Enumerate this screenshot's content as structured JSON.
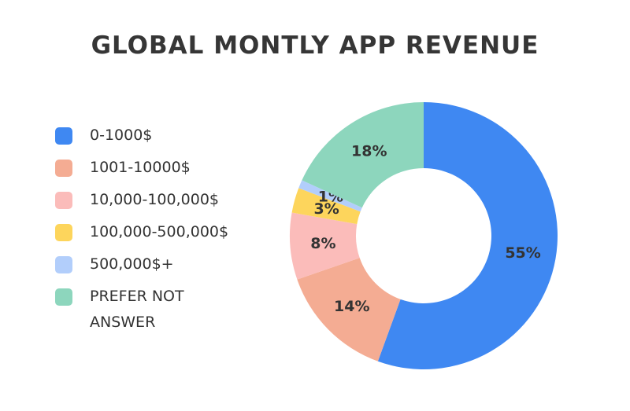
{
  "chart_data": {
    "type": "pie",
    "title": "GLOBAL MONTLY APP REVENUE",
    "categories": [
      "0-1000$",
      "1001-10000$",
      "10,000-100,000$",
      "100,000-500,000$",
      "500,000$+",
      "PREFER NOT ANSWER"
    ],
    "values": [
      55,
      14,
      8,
      3,
      1,
      18
    ],
    "data_labels": [
      "55%",
      "14%",
      "8%",
      "3%",
      "1%",
      "18%"
    ],
    "colors": [
      "#3f88f2",
      "#f4ac93",
      "#fbbcba",
      "#fdd55c",
      "#b2cefb",
      "#8dd6bd"
    ],
    "legend_position": "left"
  }
}
